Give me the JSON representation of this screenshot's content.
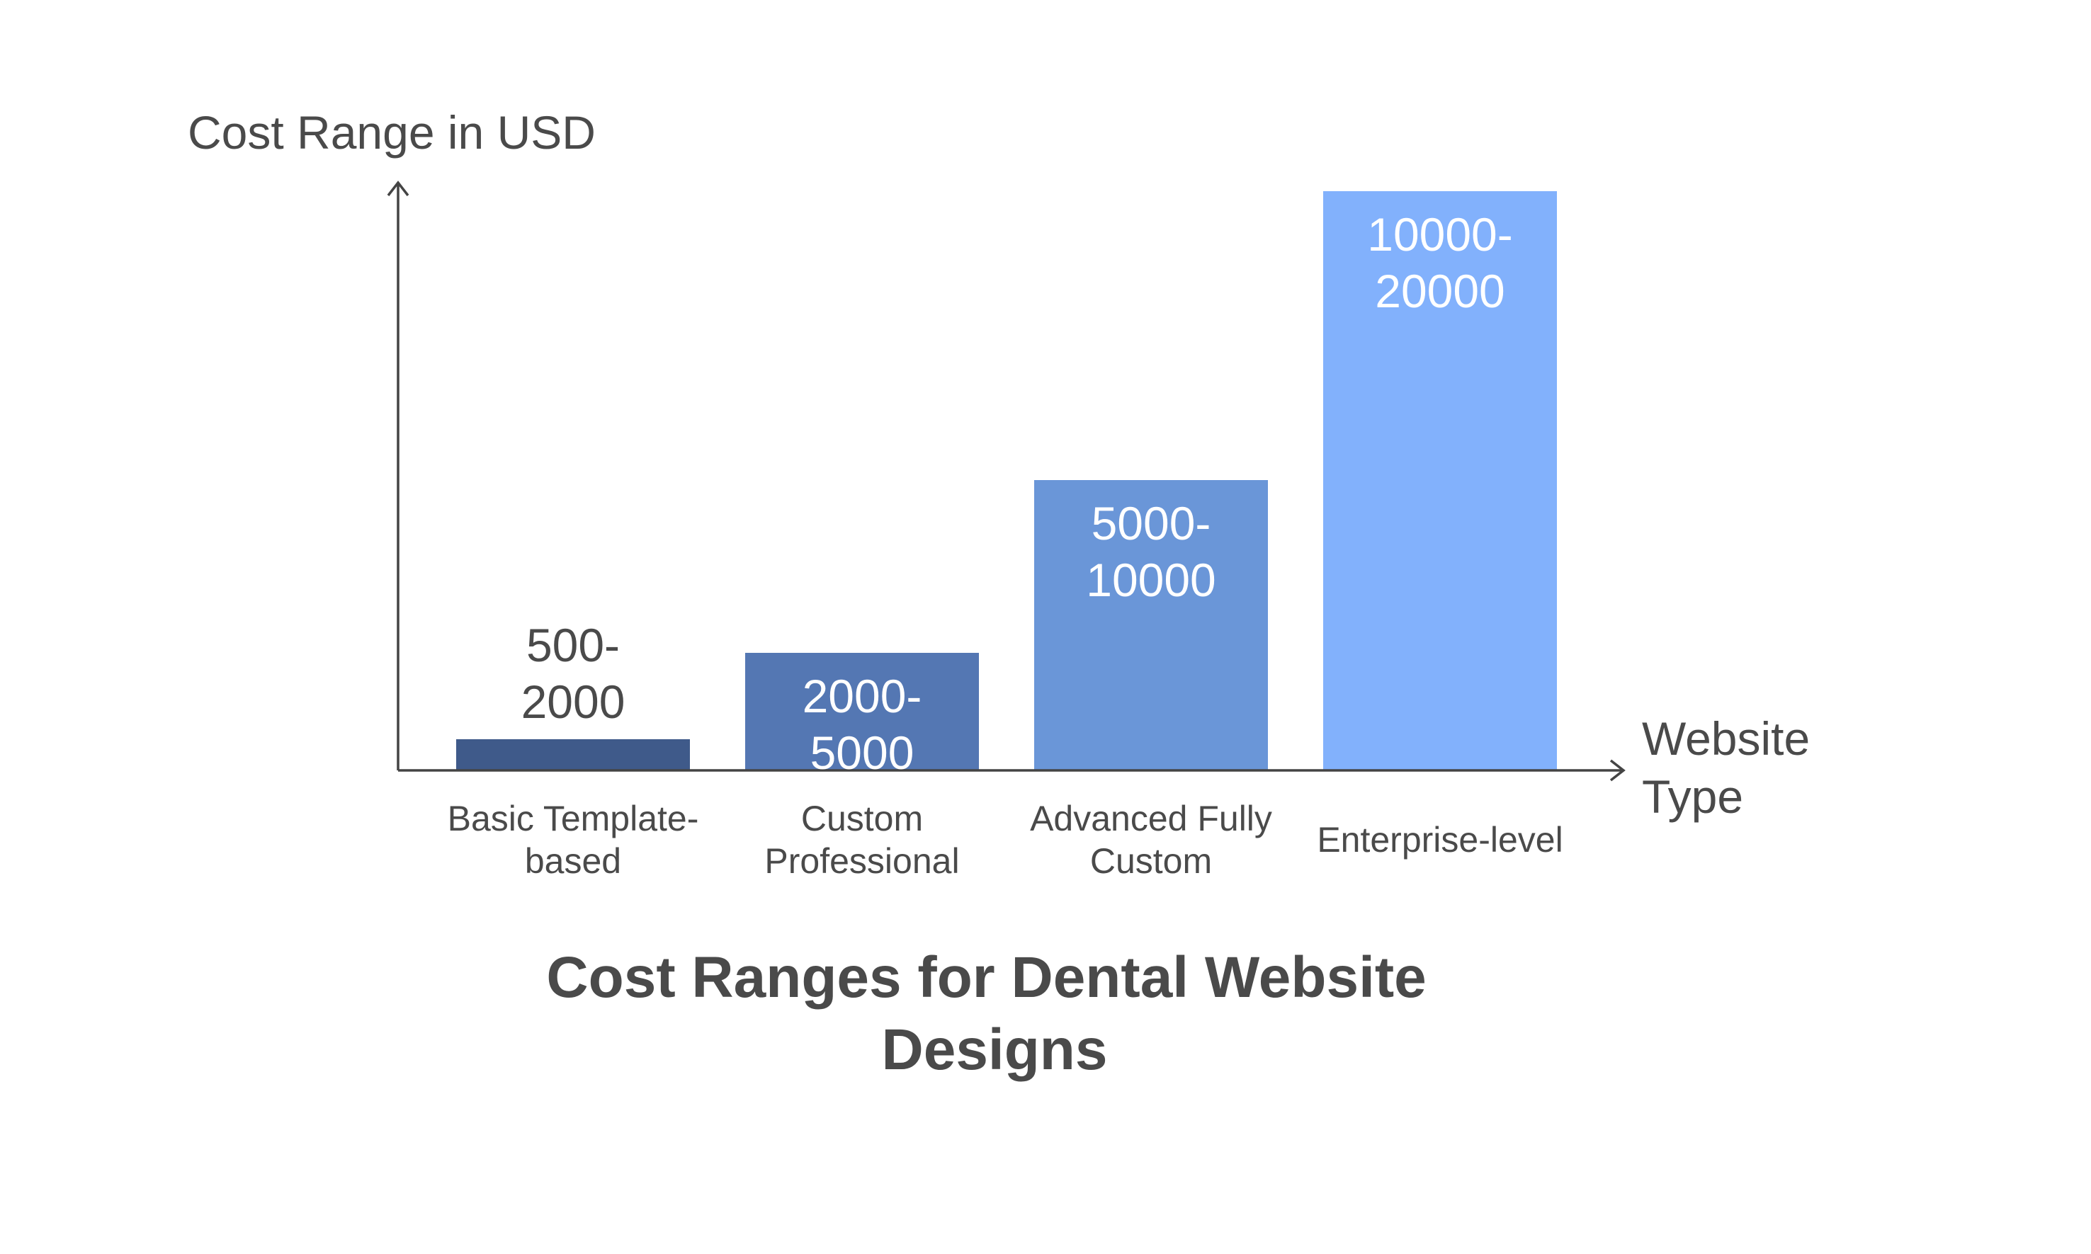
{
  "chart_data": {
    "type": "bar",
    "title_lines": [
      "Cost Ranges for Dental Website",
      "Designs"
    ],
    "xlabel_lines": [
      "Website",
      "Type"
    ],
    "ylabel": "Cost Range in USD",
    "categories": [
      [
        "Basic Template-",
        "based"
      ],
      [
        "Custom",
        "Professional"
      ],
      [
        "Advanced Fully",
        "Custom"
      ],
      [
        "Enterprise-level"
      ]
    ],
    "value_labels": [
      [
        "500-",
        "2000"
      ],
      [
        "2000-",
        "5000"
      ],
      [
        "5000-",
        "10000"
      ],
      [
        "10000-",
        "20000"
      ]
    ],
    "ranges": [
      [
        500,
        2000
      ],
      [
        2000,
        5000
      ],
      [
        5000,
        10000
      ],
      [
        10000,
        20000
      ]
    ],
    "values": [
      2000,
      5000,
      10000,
      20000
    ],
    "colors": [
      "#3f5a8a",
      "#5477b3",
      "#6a96d8",
      "#82b1fc"
    ],
    "value_label_colors": [
      "#4a4a4a",
      "#ffffff",
      "#ffffff",
      "#ffffff"
    ],
    "grid": false
  }
}
